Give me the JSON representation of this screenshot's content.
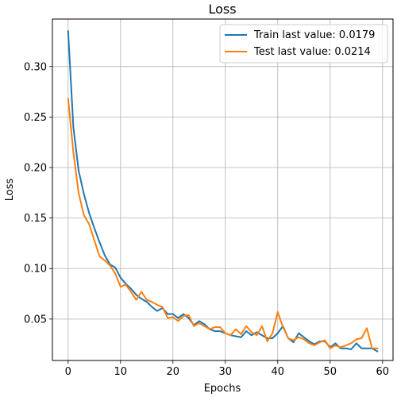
{
  "chart_data": {
    "type": "line",
    "title": "Loss",
    "xlabel": "Epochs",
    "ylabel": "Loss",
    "xlim": [
      -3,
      62
    ],
    "ylim": [
      0.009,
      0.347
    ],
    "xticks": [
      0,
      10,
      20,
      30,
      40,
      50,
      60
    ],
    "yticks": [
      0.05,
      0.1,
      0.15,
      0.2,
      0.25,
      0.3
    ],
    "ytick_labels": [
      "0.05",
      "0.10",
      "0.15",
      "0.20",
      "0.25",
      "0.30"
    ],
    "grid": true,
    "legend_position": "top-right",
    "series": [
      {
        "name": "Train last value: 0.0179",
        "color": "#1f77b4",
        "values": [
          0.335,
          0.24,
          0.197,
          0.174,
          0.155,
          0.14,
          0.126,
          0.113,
          0.104,
          0.101,
          0.091,
          0.085,
          0.08,
          0.074,
          0.07,
          0.067,
          0.062,
          0.058,
          0.061,
          0.055,
          0.055,
          0.051,
          0.055,
          0.051,
          0.044,
          0.048,
          0.045,
          0.04,
          0.038,
          0.038,
          0.036,
          0.034,
          0.033,
          0.032,
          0.038,
          0.034,
          0.037,
          0.034,
          0.031,
          0.031,
          0.036,
          0.043,
          0.031,
          0.027,
          0.036,
          0.032,
          0.028,
          0.025,
          0.028,
          0.028,
          0.022,
          0.026,
          0.021,
          0.021,
          0.02,
          0.026,
          0.021,
          0.021,
          0.021,
          0.018
        ]
      },
      {
        "name": "Test last value: 0.0214",
        "color": "#ff7f0e",
        "values": [
          0.268,
          0.215,
          0.175,
          0.153,
          0.144,
          0.128,
          0.112,
          0.108,
          0.103,
          0.095,
          0.082,
          0.084,
          0.077,
          0.069,
          0.077,
          0.069,
          0.067,
          0.064,
          0.062,
          0.051,
          0.052,
          0.048,
          0.053,
          0.054,
          0.043,
          0.046,
          0.043,
          0.04,
          0.042,
          0.042,
          0.036,
          0.034,
          0.04,
          0.035,
          0.043,
          0.037,
          0.034,
          0.043,
          0.028,
          0.036,
          0.057,
          0.042,
          0.031,
          0.029,
          0.032,
          0.03,
          0.026,
          0.024,
          0.027,
          0.029,
          0.021,
          0.024,
          0.022,
          0.024,
          0.026,
          0.03,
          0.031,
          0.041,
          0.021,
          0.021
        ]
      }
    ]
  }
}
